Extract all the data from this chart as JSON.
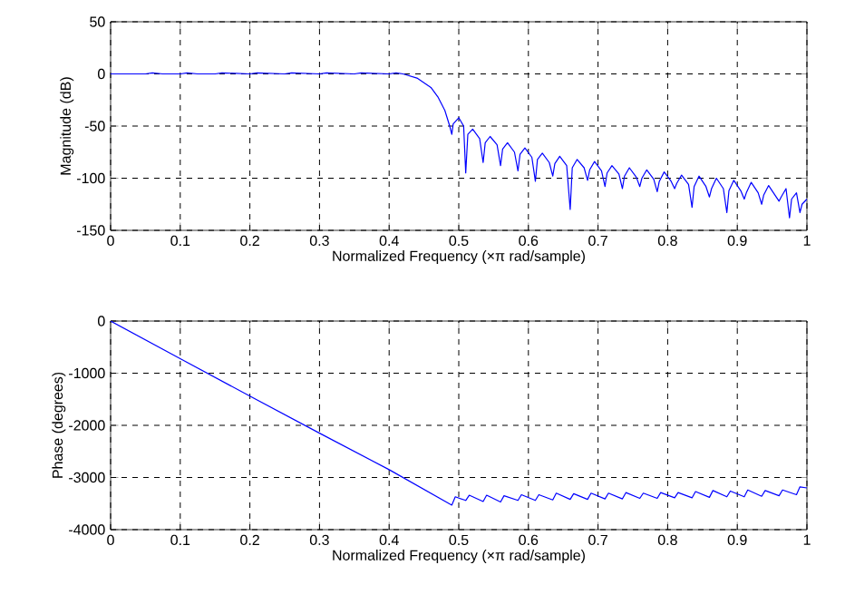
{
  "chart_data": [
    {
      "type": "line",
      "xlabel": "Normalized Frequency  (×π rad/sample)",
      "ylabel": "Magnitude (dB)",
      "xlim": [
        0,
        1
      ],
      "ylim": [
        -150,
        50
      ],
      "xticks": [
        0,
        0.1,
        0.2,
        0.3,
        0.4,
        0.5,
        0.6,
        0.7,
        0.8,
        0.9,
        1
      ],
      "yticks": [
        -150,
        -100,
        -50,
        0,
        50
      ],
      "grid": true,
      "series": [
        {
          "color": "#0000ff",
          "x": [
            0,
            0.025,
            0.05,
            0.06,
            0.075,
            0.1,
            0.11,
            0.125,
            0.15,
            0.16,
            0.2,
            0.21,
            0.25,
            0.26,
            0.3,
            0.31,
            0.35,
            0.36,
            0.4,
            0.41,
            0.42,
            0.44,
            0.46,
            0.47,
            0.48,
            0.487,
            0.49,
            0.492,
            0.5,
            0.507,
            0.51,
            0.513,
            0.52,
            0.53,
            0.535,
            0.538,
            0.545,
            0.555,
            0.56,
            0.563,
            0.57,
            0.58,
            0.585,
            0.588,
            0.595,
            0.605,
            0.61,
            0.613,
            0.62,
            0.63,
            0.635,
            0.638,
            0.645,
            0.655,
            0.66,
            0.663,
            0.67,
            0.68,
            0.685,
            0.688,
            0.695,
            0.705,
            0.71,
            0.713,
            0.72,
            0.73,
            0.735,
            0.738,
            0.745,
            0.755,
            0.76,
            0.763,
            0.77,
            0.78,
            0.785,
            0.788,
            0.795,
            0.805,
            0.81,
            0.813,
            0.82,
            0.83,
            0.835,
            0.838,
            0.845,
            0.855,
            0.86,
            0.863,
            0.87,
            0.88,
            0.885,
            0.888,
            0.895,
            0.905,
            0.91,
            0.913,
            0.92,
            0.93,
            0.935,
            0.938,
            0.945,
            0.955,
            0.96,
            0.963,
            0.97,
            0.975,
            0.978,
            0.985,
            0.99,
            0.993,
            1.0
          ],
          "values": [
            0,
            0,
            0,
            1,
            0,
            0,
            1,
            0,
            0,
            1,
            0,
            1,
            0,
            1,
            0,
            1,
            0,
            1,
            0,
            1,
            0,
            -4,
            -13,
            -22,
            -35,
            -50,
            -58,
            -48,
            -42,
            -50,
            -95,
            -58,
            -53,
            -62,
            -85,
            -66,
            -60,
            -68,
            -88,
            -72,
            -66,
            -75,
            -93,
            -77,
            -71,
            -80,
            -103,
            -82,
            -76,
            -85,
            -98,
            -86,
            -79,
            -88,
            -130,
            -90,
            -82,
            -90,
            -102,
            -92,
            -84,
            -93,
            -108,
            -95,
            -88,
            -96,
            -110,
            -98,
            -90,
            -99,
            -108,
            -100,
            -92,
            -101,
            -113,
            -103,
            -94,
            -103,
            -110,
            -105,
            -97,
            -106,
            -128,
            -108,
            -98,
            -108,
            -118,
            -110,
            -100,
            -110,
            -133,
            -112,
            -102,
            -112,
            -120,
            -114,
            -104,
            -114,
            -125,
            -116,
            -107,
            -117,
            -122,
            -118,
            -110,
            -138,
            -120,
            -114,
            -133,
            -125,
            -120
          ]
        }
      ]
    },
    {
      "type": "line",
      "xlabel": "Normalized Frequency  (×π rad/sample)",
      "ylabel": "Phase (degrees)",
      "xlim": [
        0,
        1
      ],
      "ylim": [
        -4000,
        0
      ],
      "xticks": [
        0,
        0.1,
        0.2,
        0.3,
        0.4,
        0.5,
        0.6,
        0.7,
        0.8,
        0.9,
        1
      ],
      "yticks": [
        -4000,
        -3000,
        -2000,
        -1000,
        0
      ],
      "grid": true,
      "series": [
        {
          "color": "#0000ff",
          "x": [
            0,
            0.1,
            0.2,
            0.3,
            0.4,
            0.49,
            0.495,
            0.51,
            0.515,
            0.535,
            0.54,
            0.56,
            0.565,
            0.585,
            0.59,
            0.61,
            0.615,
            0.635,
            0.64,
            0.66,
            0.665,
            0.685,
            0.69,
            0.71,
            0.715,
            0.735,
            0.74,
            0.76,
            0.765,
            0.785,
            0.79,
            0.81,
            0.815,
            0.835,
            0.84,
            0.86,
            0.865,
            0.885,
            0.89,
            0.91,
            0.915,
            0.935,
            0.94,
            0.96,
            0.965,
            0.985,
            0.99,
            1.0
          ],
          "values": [
            0,
            -720,
            -1440,
            -2150,
            -2850,
            -3530,
            -3370,
            -3440,
            -3340,
            -3460,
            -3340,
            -3470,
            -3350,
            -3440,
            -3330,
            -3440,
            -3330,
            -3430,
            -3300,
            -3420,
            -3310,
            -3420,
            -3300,
            -3410,
            -3300,
            -3410,
            -3290,
            -3400,
            -3300,
            -3400,
            -3290,
            -3390,
            -3290,
            -3390,
            -3270,
            -3380,
            -3250,
            -3370,
            -3260,
            -3370,
            -3240,
            -3360,
            -3250,
            -3350,
            -3240,
            -3330,
            -3180,
            -3200
          ]
        }
      ]
    }
  ]
}
